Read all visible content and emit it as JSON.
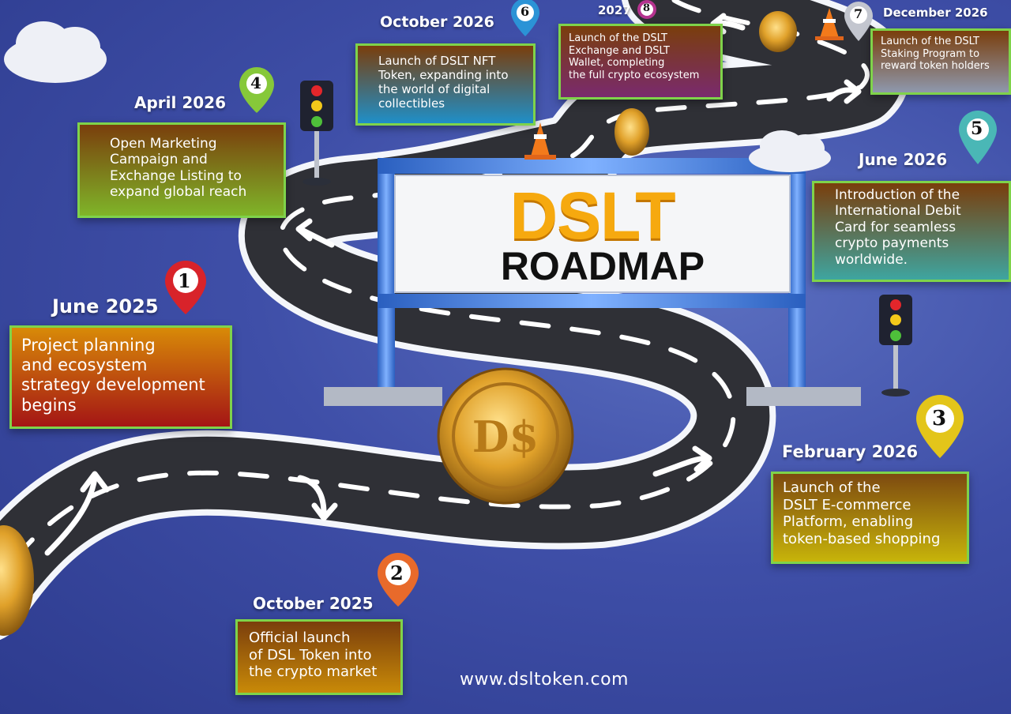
{
  "title": {
    "line1": "DSLT",
    "line2": "ROADMAP"
  },
  "website": "www.dsltoken.com",
  "colors": {
    "gold": "#f6a90f",
    "green_border": "#7fd34a",
    "background": "#3f4fa8"
  },
  "milestones": [
    {
      "num": "1",
      "date": "June 2025",
      "text": [
        "Project planning",
        "and ecosystem",
        "strategy development",
        "begins"
      ]
    },
    {
      "num": "2",
      "date": "October 2025",
      "text": [
        "Official launch",
        "of DSL Token into",
        "the crypto market"
      ]
    },
    {
      "num": "3",
      "date": "February 2026",
      "text": [
        "Launch of the",
        "DSLT E-commerce",
        "Platform, enabling",
        "token-based shopping"
      ]
    },
    {
      "num": "4",
      "date": "April 2026",
      "text": [
        "Open Marketing",
        "Campaign and",
        "Exchange Listing to",
        "expand global reach"
      ]
    },
    {
      "num": "5",
      "date": "June 2026",
      "text": [
        "Introduction of the",
        "International Debit",
        "Card for seamless",
        "crypto payments",
        "worldwide."
      ]
    },
    {
      "num": "6",
      "date": "October 2026",
      "text": [
        "Launch of DSLT NFT",
        "Token, expanding into",
        "the world of digital",
        "collectibles"
      ]
    },
    {
      "num": "7",
      "date": "December 2026",
      "text": [
        "Launch of the DSLT",
        "Staking Program to",
        "reward token holders"
      ]
    },
    {
      "num": "8",
      "date": "2027",
      "text": [
        "Launch of the DSLT",
        "Exchange and DSLT",
        "Wallet, completing",
        "the full crypto ecosystem"
      ]
    }
  ],
  "icons": [
    "map-pin-icon",
    "traffic-light-icon",
    "traffic-cone-icon",
    "cloud-icon",
    "coin-icon",
    "arrow-icon"
  ]
}
